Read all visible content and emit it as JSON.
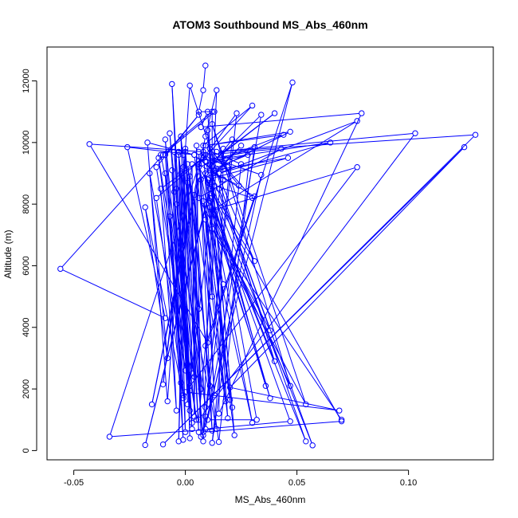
{
  "chart_data": {
    "type": "line",
    "title": "ATOM3 Southbound MS_Abs_460nm",
    "xlabel": "MS_Abs_460nm",
    "ylabel": "Altitude (m)",
    "xlim": [
      -0.062,
      0.138
    ],
    "ylim": [
      -300,
      13100
    ],
    "xticks": [
      "-0.05",
      "0.00",
      "0.05",
      "0.10"
    ],
    "xtick_values": [
      -0.05,
      0.0,
      0.05,
      0.1
    ],
    "yticks": [
      "0",
      "2000",
      "4000",
      "6000",
      "8000",
      "10000",
      "12000"
    ],
    "ytick_values": [
      0,
      2000,
      4000,
      6000,
      8000,
      10000,
      12000
    ],
    "grid": false,
    "legend": "none",
    "colors": {
      "series": "#0000ff",
      "axes": "#000000"
    },
    "series": [
      {
        "points": [
          [
            0.009,
            12500
          ],
          [
            0.008,
            11700
          ],
          [
            0.006,
            11000
          ],
          [
            0.013,
            11000
          ],
          [
            -0.01,
            9600
          ],
          [
            -0.056,
            5900
          ],
          [
            -0.009,
            4300
          ],
          [
            -0.026,
            9850
          ],
          [
            0.004,
            9600
          ],
          [
            -0.017,
            10000
          ],
          [
            -0.008,
            1600
          ],
          [
            0.002,
            11850
          ],
          [
            0.014,
            9150
          ],
          [
            0.002,
            2100
          ],
          [
            0.006,
            8900
          ],
          [
            -0.015,
            1500
          ],
          [
            0.009,
            10200
          ],
          [
            0.014,
            11700
          ],
          [
            0.008,
            500
          ],
          [
            0.023,
            10950
          ],
          [
            0.006,
            9300
          ],
          [
            0.03,
            11200
          ],
          [
            0.008,
            9900
          ],
          [
            0.012,
            5000
          ],
          [
            0.012,
            11000
          ],
          [
            -0.011,
            9600
          ],
          [
            0.014,
            700
          ],
          [
            -0.034,
            450
          ],
          [
            0.008,
            9700
          ],
          [
            -0.043,
            9950
          ],
          [
            0.01,
            3500
          ],
          [
            0.048,
            11950
          ],
          [
            0.008,
            600
          ],
          [
            0.07,
            950
          ],
          [
            0.011,
            8500
          ],
          [
            -0.018,
            180
          ],
          [
            0.012,
            8700
          ],
          [
            0.01,
            11000
          ],
          [
            0.007,
            10500
          ],
          [
            0.079,
            10950
          ],
          [
            0.015,
            1200
          ],
          [
            0.017,
            9800
          ],
          [
            0.006,
            1000
          ],
          [
            0.103,
            10300
          ],
          [
            0.014,
            9700
          ],
          [
            0.13,
            10250
          ],
          [
            -0.01,
            200
          ],
          [
            0.125,
            9850
          ],
          [
            0.02,
            2050
          ],
          [
            0.069,
            1300
          ],
          [
            0.0,
            1900
          ],
          [
            0.077,
            9200
          ],
          [
            0.012,
            7800
          ],
          [
            0.077,
            10700
          ],
          [
            0.015,
            9000
          ],
          [
            0.065,
            10000
          ],
          [
            0.009,
            9400
          ],
          [
            0.036,
            2100
          ],
          [
            0.011,
            8100
          ],
          [
            0.054,
            300
          ],
          [
            0.009,
            9600
          ],
          [
            0.043,
            9800
          ],
          [
            0.006,
            8200
          ],
          [
            0.038,
            3900
          ],
          [
            0.015,
            8500
          ],
          [
            0.057,
            170
          ],
          [
            0.01,
            8800
          ],
          [
            0.046,
            9500
          ],
          [
            0.013,
            9100
          ],
          [
            0.047,
            10350
          ],
          [
            0.009,
            9900
          ],
          [
            0.044,
            10250
          ],
          [
            0.006,
            9200
          ],
          [
            0.031,
            6150
          ],
          [
            0.012,
            9400
          ],
          [
            0.04,
            10950
          ],
          [
            0.016,
            9600
          ],
          [
            0.034,
            10900
          ],
          [
            0.009,
            700
          ],
          [
            0.047,
            950
          ],
          [
            0.011,
            8200
          ],
          [
            0.04,
            2900
          ],
          [
            0.012,
            9500
          ],
          [
            0.034,
            8950
          ],
          [
            0.01,
            1000
          ],
          [
            0.032,
            1000
          ],
          [
            0.013,
            8600
          ],
          [
            0.03,
            8200
          ],
          [
            0.012,
            9700
          ],
          [
            0.025,
            9300
          ],
          [
            0.012,
            250
          ],
          [
            0.031,
            9850
          ],
          [
            0.011,
            9300
          ],
          [
            0.028,
            9600
          ],
          [
            0.011,
            9100
          ],
          [
            0.031,
            8250
          ],
          [
            0.009,
            3400
          ],
          [
            0.015,
            280
          ],
          [
            0.029,
            9700
          ],
          [
            0.006,
            9400
          ],
          [
            0.022,
            500
          ],
          [
            0.011,
            9800
          ],
          [
            0.024,
            8600
          ],
          [
            0.013,
            9000
          ],
          [
            0.025,
            9900
          ],
          [
            0.01,
            8700
          ],
          [
            0.02,
            1650
          ],
          [
            0.008,
            9600
          ],
          [
            0.019,
            9200
          ],
          [
            0.007,
            8800
          ],
          [
            0.021,
            10100
          ],
          [
            0.009,
            1100
          ],
          [
            0.017,
            5400
          ],
          [
            0.006,
            9300
          ],
          [
            0.017,
            8800
          ],
          [
            0.004,
            9600
          ],
          [
            0.018,
            1600
          ],
          [
            0.001,
            9300
          ],
          [
            0.011,
            2100
          ],
          [
            0.002,
            8900
          ],
          [
            0.007,
            2000
          ],
          [
            0.0,
            9700
          ],
          [
            0.006,
            600
          ],
          [
            -0.001,
            9200
          ],
          [
            0.008,
            300
          ],
          [
            -0.003,
            9600
          ],
          [
            0.006,
            4600
          ],
          [
            -0.002,
            10200
          ],
          [
            0.002,
            1950
          ],
          [
            -0.005,
            9700
          ],
          [
            0.003,
            700
          ],
          [
            -0.006,
            9100
          ],
          [
            -0.001,
            350
          ],
          [
            -0.009,
            9600
          ],
          [
            0.006,
            10900
          ],
          [
            -0.013,
            9200
          ],
          [
            0.005,
            1000
          ],
          [
            -0.009,
            9000
          ],
          [
            -0.004,
            1300
          ],
          [
            -0.011,
            8500
          ],
          [
            0.008,
            9500
          ],
          [
            -0.013,
            8200
          ],
          [
            -0.001,
            1800
          ],
          [
            -0.018,
            7900
          ],
          [
            -0.008,
            3000
          ],
          [
            -0.016,
            9000
          ],
          [
            0.0,
            2600
          ],
          [
            -0.012,
            9500
          ],
          [
            0.004,
            2400
          ],
          [
            -0.007,
            10300
          ],
          [
            0.001,
            2800
          ],
          [
            -0.004,
            8500
          ],
          [
            0.002,
            1300
          ],
          [
            -0.003,
            9700
          ],
          [
            0.0,
            600
          ],
          [
            -0.005,
            8400
          ],
          [
            -0.002,
            2200
          ],
          [
            -0.007,
            7600
          ],
          [
            -0.001,
            1700
          ],
          [
            -0.009,
            10100
          ],
          [
            0.003,
            900
          ],
          [
            -0.006,
            11900
          ],
          [
            0.001,
            1500
          ],
          [
            -0.002,
            9000
          ],
          [
            0.002,
            400
          ],
          [
            -0.001,
            9600
          ],
          [
            0.003,
            2500
          ],
          [
            -0.004,
            8000
          ],
          [
            0.009,
            1400
          ],
          [
            0.0,
            9800
          ],
          [
            -0.003,
            300
          ],
          [
            0.001,
            8700
          ],
          [
            -0.01,
            2150
          ],
          [
            0.003,
            9300
          ],
          [
            0.004,
            1100
          ],
          [
            0.005,
            9900
          ],
          [
            0.007,
            450
          ],
          [
            0.004,
            8300
          ],
          [
            0.012,
            650
          ],
          [
            0.006,
            9700
          ],
          [
            0.013,
            1800
          ],
          [
            0.009,
            7500
          ],
          [
            0.019,
            1050
          ],
          [
            0.01,
            10400
          ],
          [
            0.021,
            1400
          ],
          [
            0.008,
            8100
          ],
          [
            0.03,
            900
          ],
          [
            0.009,
            9000
          ],
          [
            0.038,
            1700
          ],
          [
            0.011,
            7900
          ],
          [
            0.047,
            2100
          ],
          [
            0.012,
            10600
          ],
          [
            0.054,
            1500
          ],
          [
            0.012,
            7200
          ],
          [
            0.07,
            1000
          ]
        ]
      }
    ]
  }
}
